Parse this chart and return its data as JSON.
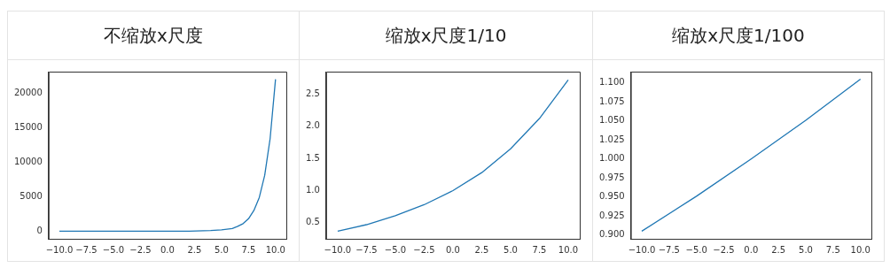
{
  "chart_data": [
    {
      "type": "line",
      "title": "不缩放x尺度",
      "x": [
        -10,
        0,
        2,
        4,
        5,
        6,
        6.5,
        7,
        7.5,
        8,
        8.5,
        9,
        9.5,
        10
      ],
      "values": [
        0,
        0,
        0,
        100,
        200,
        400,
        700,
        1100,
        1800,
        3000,
        4900,
        8100,
        13400,
        22000
      ],
      "color": "#1f77b4",
      "xlim": [
        -11,
        11
      ],
      "xticks": [
        {
          "value": -10,
          "label": "−10.0"
        },
        {
          "value": -7.5,
          "label": "−7.5"
        },
        {
          "value": -5,
          "label": "−5.0"
        },
        {
          "value": -2.5,
          "label": "−2.5"
        },
        {
          "value": 0,
          "label": "0.0"
        },
        {
          "value": 2.5,
          "label": "2.5"
        },
        {
          "value": 5,
          "label": "5.0"
        },
        {
          "value": 7.5,
          "label": "7.5"
        },
        {
          "value": 10,
          "label": "10.0"
        }
      ],
      "ylim": [
        -1100,
        23100
      ],
      "yticks": [
        0,
        5000,
        10000,
        15000,
        20000
      ]
    },
    {
      "type": "line",
      "title": "缩放x尺度1/10",
      "x": [
        -10,
        -7.5,
        -5,
        -2.5,
        0,
        2.5,
        5,
        7.5,
        10
      ],
      "values": [
        0.37,
        0.47,
        0.61,
        0.78,
        1.0,
        1.28,
        1.65,
        2.12,
        2.72
      ],
      "color": "#1f77b4",
      "xlim": [
        -11,
        11
      ],
      "xticks": [
        {
          "value": -10,
          "label": "−10.0"
        },
        {
          "value": -7.5,
          "label": "−7.5"
        },
        {
          "value": -5,
          "label": "−5.0"
        },
        {
          "value": -2.5,
          "label": "−2.5"
        },
        {
          "value": 0,
          "label": "0.0"
        },
        {
          "value": 2.5,
          "label": "2.5"
        },
        {
          "value": 5,
          "label": "5.0"
        },
        {
          "value": 7.5,
          "label": "7.5"
        },
        {
          "value": 10,
          "label": "10.0"
        }
      ],
      "ylim": [
        0.25,
        2.85
      ],
      "yticks": [
        0.5,
        {
          "value": 1,
          "label": "1.0"
        },
        1.5,
        {
          "value": 2,
          "label": "2.0"
        },
        2.5
      ]
    },
    {
      "type": "line",
      "title": "缩放x尺度1/100",
      "x": [
        -10,
        -5,
        0,
        5,
        10
      ],
      "values": [
        0.905,
        0.951,
        1.0,
        1.051,
        1.105
      ],
      "color": "#1f77b4",
      "xlim": [
        -11,
        11
      ],
      "xticks": [
        {
          "value": -10,
          "label": "−10.0"
        },
        {
          "value": -7.5,
          "label": "−7.5"
        },
        {
          "value": -5,
          "label": "−5.0"
        },
        {
          "value": -2.5,
          "label": "−2.5"
        },
        {
          "value": 0,
          "label": "0.0"
        },
        {
          "value": 2.5,
          "label": "2.5"
        },
        {
          "value": 5,
          "label": "5.0"
        },
        {
          "value": 7.5,
          "label": "7.5"
        },
        {
          "value": 10,
          "label": "10.0"
        }
      ],
      "ylim": [
        0.895,
        1.115
      ],
      "yticks": [
        {
          "value": 0.9,
          "label": "0.900"
        },
        0.925,
        {
          "value": 0.95,
          "label": "0.950"
        },
        0.975,
        {
          "value": 1,
          "label": "1.000"
        },
        1.025,
        {
          "value": 1.05,
          "label": "1.050"
        },
        1.075,
        {
          "value": 1.1,
          "label": "1.100"
        }
      ]
    }
  ]
}
